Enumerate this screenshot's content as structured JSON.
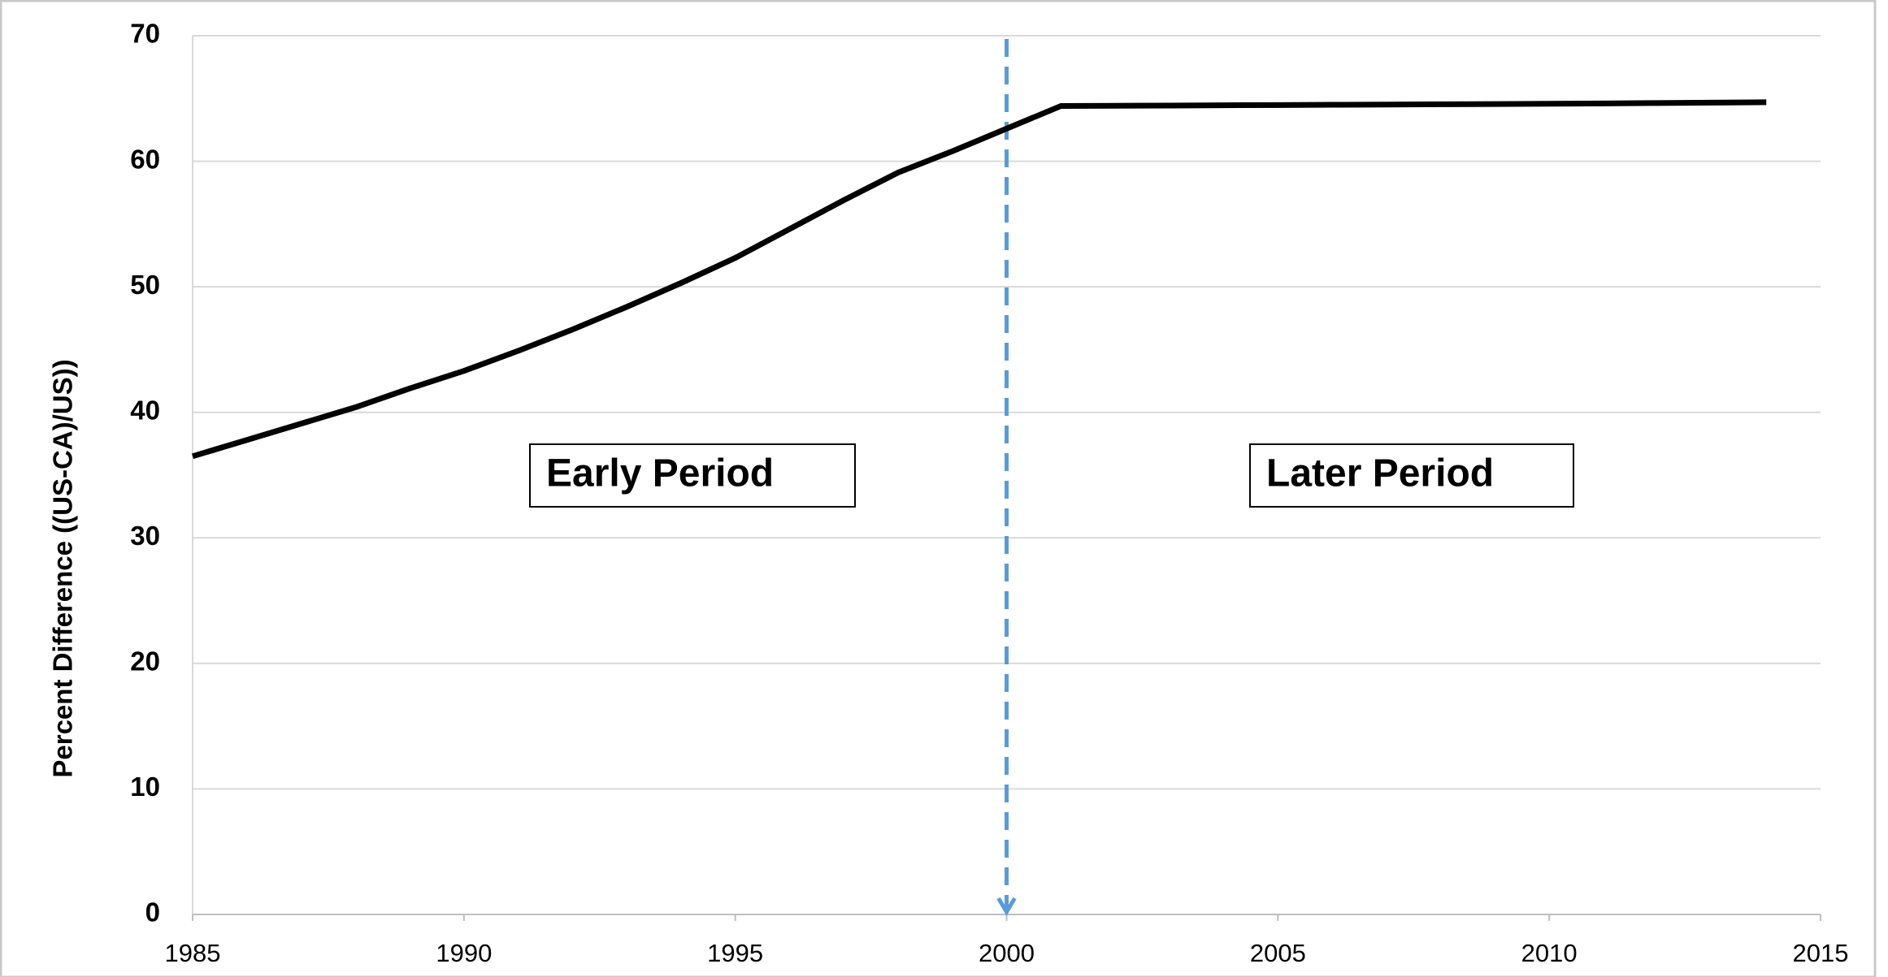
{
  "chart_data": {
    "type": "line",
    "y_label": "Percent Difference ((US-CA)/US))",
    "x": [
      1985,
      1986,
      1987,
      1988,
      1989,
      1990,
      1991,
      1992,
      1993,
      1994,
      1995,
      1996,
      1997,
      1998,
      1999,
      2000,
      2001,
      2002,
      2003,
      2004,
      2005,
      2006,
      2007,
      2008,
      2009,
      2010,
      2011,
      2012,
      2013,
      2014
    ],
    "values": [
      36.5,
      37.8,
      39.1,
      40.4,
      41.9,
      43.3,
      44.9,
      46.6,
      48.4,
      50.3,
      52.3,
      54.6,
      56.9,
      59.1,
      60.8,
      62.6,
      64.4,
      64.42,
      64.44,
      64.46,
      64.48,
      64.5,
      64.52,
      64.54,
      64.56,
      64.58,
      64.61,
      64.64,
      64.67,
      64.7
    ],
    "color": "#000000",
    "xlim": [
      1985,
      2015
    ],
    "xticks": [
      1985,
      1990,
      1995,
      2000,
      2005,
      2010,
      2015
    ],
    "ylim": [
      0,
      70
    ],
    "yticks": [
      0,
      10,
      20,
      30,
      40,
      50,
      60,
      70
    ],
    "grid": true,
    "vline": {
      "x": 2000,
      "color": "#5b9bd5"
    },
    "annotations": [
      "Early Period",
      "Later Period"
    ]
  }
}
